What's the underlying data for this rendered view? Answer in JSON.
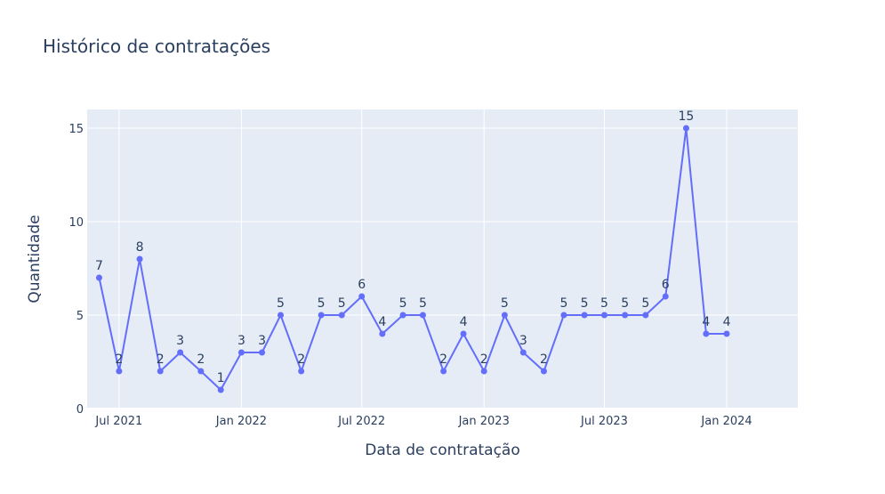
{
  "chart_data": {
    "type": "line",
    "title": "Histórico de contratações",
    "xlabel": "Data de contratação",
    "ylabel": "Quantidade",
    "x": [
      "2021-06",
      "2021-07",
      "2021-08",
      "2021-09",
      "2021-10",
      "2021-11",
      "2021-12",
      "2022-01",
      "2022-02",
      "2022-03",
      "2022-04",
      "2022-05",
      "2022-06",
      "2022-07",
      "2022-08",
      "2022-09",
      "2022-10",
      "2022-11",
      "2022-12",
      "2023-01",
      "2023-02",
      "2023-03",
      "2023-04",
      "2023-05",
      "2023-06",
      "2023-07",
      "2023-08",
      "2023-09",
      "2023-10",
      "2023-11",
      "2023-12",
      "2024-01"
    ],
    "values": [
      7,
      2,
      8,
      2,
      3,
      2,
      1,
      3,
      3,
      5,
      2,
      5,
      5,
      6,
      4,
      5,
      5,
      2,
      4,
      2,
      5,
      3,
      2,
      5,
      5,
      5,
      5,
      5,
      6,
      15,
      4,
      4
    ],
    "xlim": [
      "2021-05-14",
      "2024-04-17"
    ],
    "ylim": [
      0,
      16
    ],
    "x_ticks": [
      {
        "date": "2021-07-01",
        "label": "Jul 2021"
      },
      {
        "date": "2022-01-01",
        "label": "Jan 2022"
      },
      {
        "date": "2022-07-01",
        "label": "Jul 2022"
      },
      {
        "date": "2023-01-01",
        "label": "Jan 2023"
      },
      {
        "date": "2023-07-01",
        "label": "Jul 2023"
      },
      {
        "date": "2024-01-01",
        "label": "Jan 2024"
      }
    ],
    "y_ticks": [
      0,
      5,
      10,
      15
    ],
    "grid": true,
    "line_color": "#636efa",
    "plot_bg": "#e5ecf6"
  }
}
